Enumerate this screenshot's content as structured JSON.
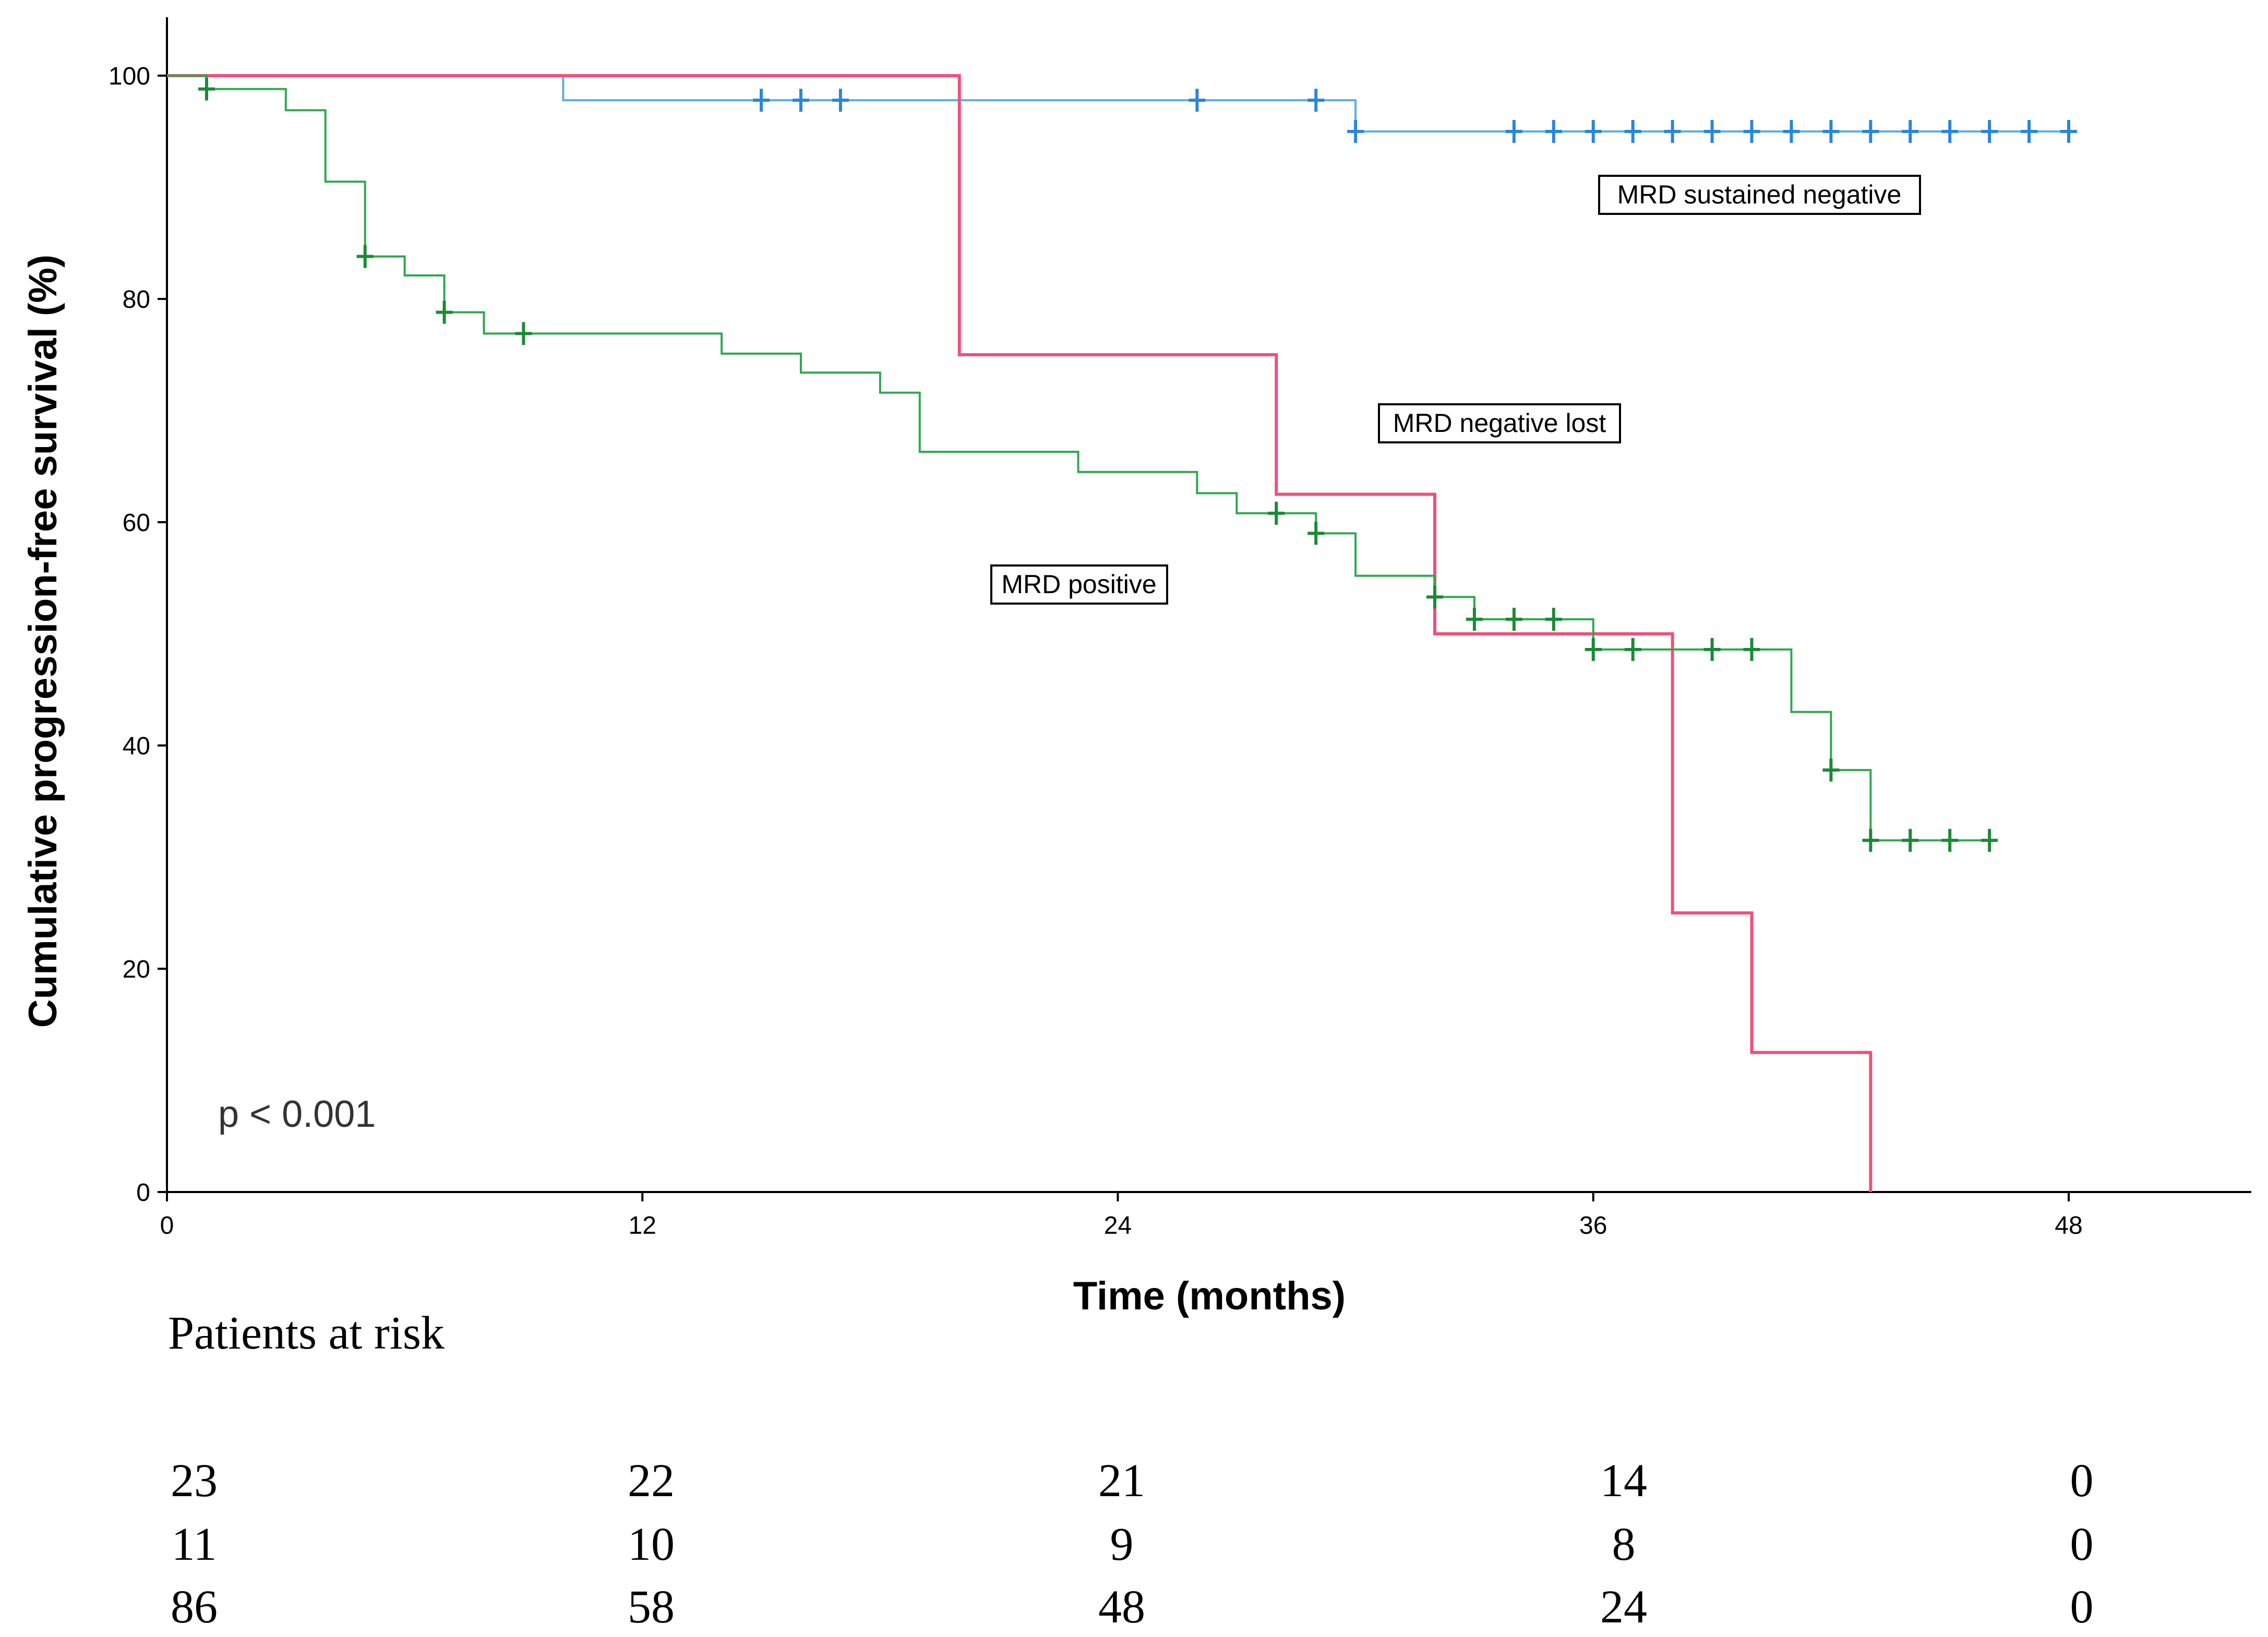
{
  "chart_data": {
    "type": "line",
    "subtype": "kaplan-meier",
    "xlabel": "Time (months)",
    "ylabel": "Cumulative progression-free survival (%)",
    "xlim": [
      0,
      52
    ],
    "ylim": [
      0,
      100
    ],
    "xticks": [
      0,
      12,
      24,
      36,
      48
    ],
    "yticks": [
      0,
      20,
      40,
      60,
      80,
      100
    ],
    "annotation": "p < 0.001",
    "series": [
      {
        "name": "MRD sustained negative",
        "color": "#5aaee6",
        "censor_color": "#2a86d8",
        "steps": [
          [
            0,
            100
          ],
          [
            10,
            97.8
          ],
          [
            30,
            95.0
          ],
          [
            48,
            95.0
          ]
        ],
        "censors": [
          [
            15,
            97.8
          ],
          [
            16,
            97.8
          ],
          [
            17,
            97.8
          ],
          [
            26,
            97.8
          ],
          [
            29,
            97.8
          ],
          [
            30,
            95.0
          ],
          [
            34,
            95.0
          ],
          [
            35,
            95.0
          ],
          [
            36,
            95.0
          ],
          [
            37,
            95.0
          ],
          [
            38,
            95.0
          ],
          [
            39,
            95.0
          ],
          [
            40,
            95.0
          ],
          [
            41,
            95.0
          ],
          [
            42,
            95.0
          ],
          [
            43,
            95.0
          ],
          [
            44,
            95.0
          ],
          [
            45,
            95.0
          ],
          [
            46,
            95.0
          ],
          [
            47,
            95.0
          ],
          [
            48,
            95.0
          ]
        ]
      },
      {
        "name": "MRD negative lost",
        "color": "#f0507a",
        "censor_color": "#f0507a",
        "steps": [
          [
            0,
            100
          ],
          [
            20,
            75.0
          ],
          [
            28,
            62.5
          ],
          [
            32,
            50.0
          ],
          [
            38,
            25.0
          ],
          [
            40,
            12.5
          ],
          [
            43,
            0
          ]
        ],
        "censors": []
      },
      {
        "name": "MRD positive",
        "color": "#2ea84e",
        "censor_color": "#1a8a35",
        "steps": [
          [
            0,
            100
          ],
          [
            1,
            98.8
          ],
          [
            3,
            96.9
          ],
          [
            4,
            90.5
          ],
          [
            5,
            83.8
          ],
          [
            6,
            82.1
          ],
          [
            7,
            78.8
          ],
          [
            8,
            76.9
          ],
          [
            14,
            75.1
          ],
          [
            16,
            73.4
          ],
          [
            18,
            71.6
          ],
          [
            19,
            66.3
          ],
          [
            23,
            64.5
          ],
          [
            26,
            62.6
          ],
          [
            27,
            60.8
          ],
          [
            29,
            59.0
          ],
          [
            30,
            55.2
          ],
          [
            32,
            53.3
          ],
          [
            33,
            51.3
          ],
          [
            36,
            48.6
          ],
          [
            41,
            43.0
          ],
          [
            42,
            37.8
          ],
          [
            43,
            31.5
          ],
          [
            46,
            31.5
          ]
        ],
        "censors": [
          [
            1,
            98.8
          ],
          [
            5,
            83.8
          ],
          [
            7,
            78.8
          ],
          [
            9,
            76.9
          ],
          [
            28,
            60.8
          ],
          [
            29,
            59.0
          ],
          [
            32,
            53.3
          ],
          [
            33,
            51.3
          ],
          [
            34,
            51.3
          ],
          [
            35,
            51.3
          ],
          [
            36,
            48.6
          ],
          [
            37,
            48.6
          ],
          [
            39,
            48.6
          ],
          [
            40,
            48.6
          ],
          [
            42,
            37.8
          ],
          [
            43,
            31.5
          ],
          [
            44,
            31.5
          ],
          [
            45,
            31.5
          ],
          [
            46,
            31.5
          ]
        ]
      }
    ]
  },
  "risk_table": {
    "title": "Patients at risk",
    "rows": [
      [
        "23",
        "22",
        "21",
        "14",
        "0"
      ],
      [
        "11",
        "10",
        "9",
        "8",
        "0"
      ],
      [
        "86",
        "58",
        "48",
        "24",
        "0"
      ]
    ]
  }
}
